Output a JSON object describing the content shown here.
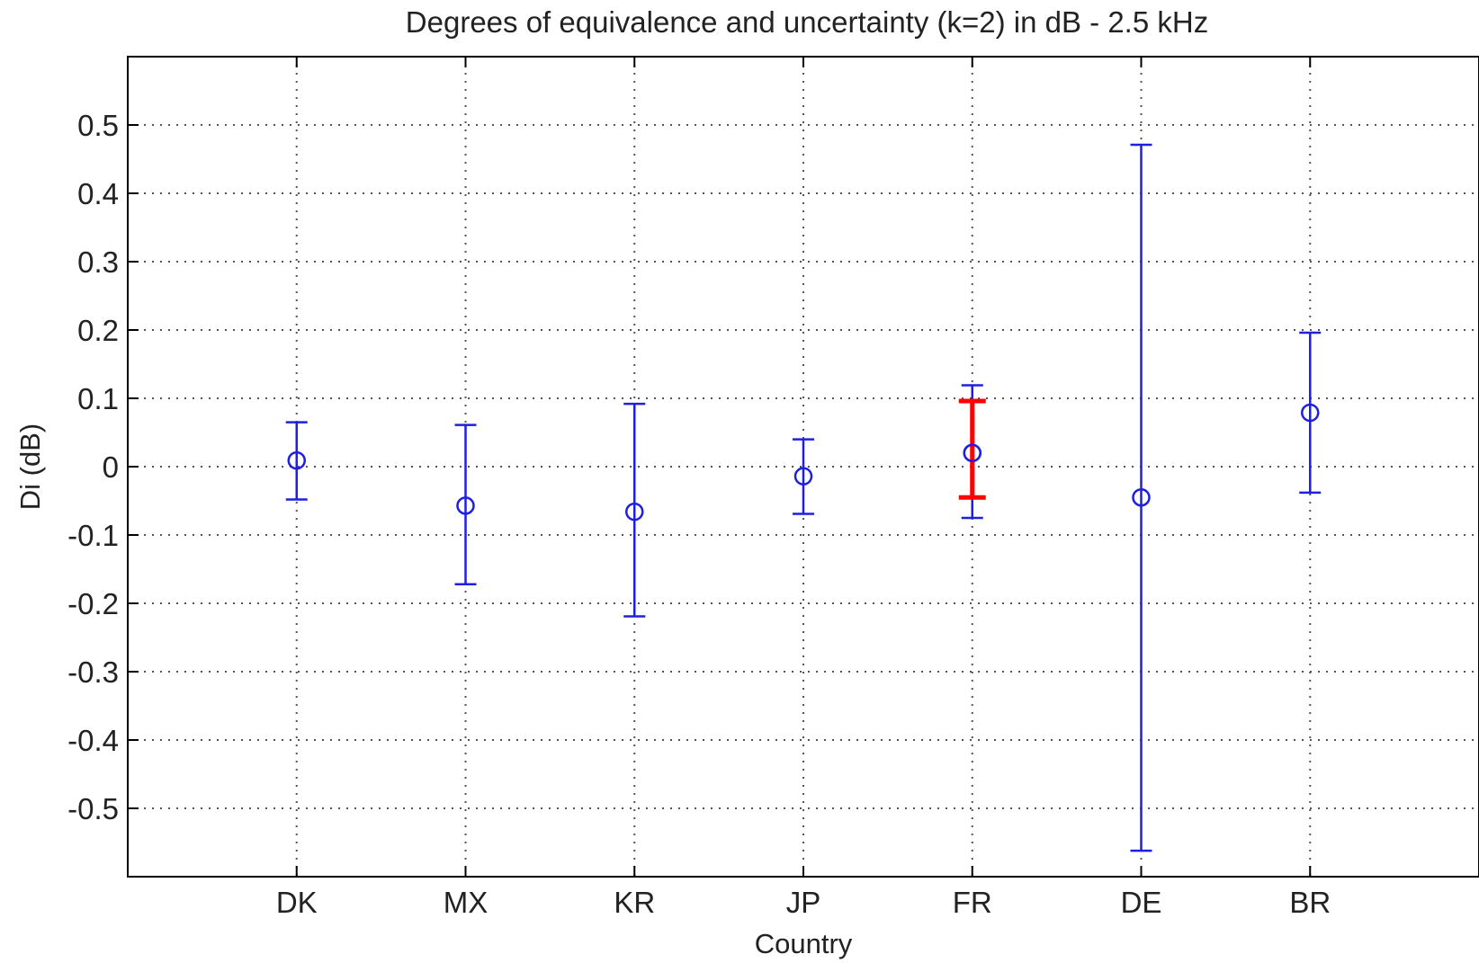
{
  "chart_data": {
    "type": "errorbar",
    "title": "Degrees of equivalence and uncertainty (k=2) in dB - 2.5 kHz",
    "xlabel": "Country",
    "ylabel": "Di (dB)",
    "ylim": [
      -0.6,
      0.6
    ],
    "yticks": [
      "0.5",
      "0.4",
      "0.3",
      "0.2",
      "0.1",
      "0",
      "-0.1",
      "-0.2",
      "-0.3",
      "-0.4",
      "-0.5"
    ],
    "ytick_values": [
      0.5,
      0.4,
      0.3,
      0.2,
      0.1,
      0,
      -0.1,
      -0.2,
      -0.3,
      -0.4,
      -0.5
    ],
    "categories": [
      "DK",
      "MX",
      "KR",
      "JP",
      "FR",
      "DE",
      "BR"
    ],
    "grid": true,
    "series": [
      {
        "values": [
          0.009,
          -0.057,
          -0.066,
          -0.014,
          0.02,
          -0.045,
          0.079
        ],
        "lower": [
          -0.048,
          -0.172,
          -0.219,
          -0.069,
          -0.075,
          -0.562,
          -0.038
        ],
        "upper": [
          0.065,
          0.061,
          0.092,
          0.04,
          0.119,
          0.471,
          0.196
        ],
        "color": "#1f1fe0"
      },
      {
        "category": "FR",
        "lower": -0.045,
        "upper": 0.096,
        "color": "#ff0000"
      }
    ],
    "colors": {
      "axis": "#000000",
      "grid": "#555555",
      "series": "#1f1fe0",
      "highlight": "#ff0000"
    }
  }
}
